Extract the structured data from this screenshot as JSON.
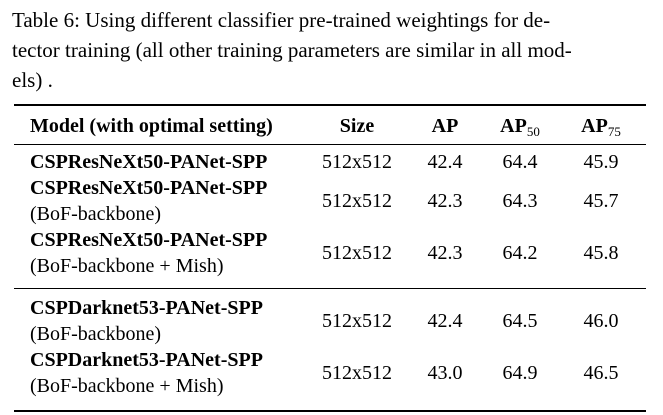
{
  "caption": {
    "lines": [
      "Table 6: Using different classifier pre-trained weightings for de-",
      "tector training (all other training parameters are similar in all mod-",
      "els) ."
    ]
  },
  "table": {
    "header": [
      {
        "text": "Model (with optimal setting)"
      },
      {
        "text": "Size"
      },
      {
        "text": "AP"
      },
      {
        "text": "AP",
        "sub": "50"
      },
      {
        "text": "AP",
        "sub": "75"
      }
    ],
    "groups": [
      [
        {
          "model": "CSPResNeXt50-PANet-SPP",
          "cells": [
            "512x512",
            "42.4",
            "64.4",
            "45.9"
          ]
        },
        {
          "model": "CSPResNeXt50-PANet-SPP",
          "note": "(BoF-backbone)",
          "cells": [
            "512x512",
            "42.3",
            "64.3",
            "45.7"
          ]
        },
        {
          "model": "CSPResNeXt50-PANet-SPP",
          "note": "(BoF-backbone + Mish)",
          "cells": [
            "512x512",
            "42.3",
            "64.2",
            "45.8"
          ]
        }
      ],
      [
        {
          "model": "CSPDarknet53-PANet-SPP",
          "note": "(BoF-backbone)",
          "cells": [
            "512x512",
            "42.4",
            "64.5",
            "46.0"
          ]
        },
        {
          "model": "CSPDarknet53-PANet-SPP",
          "note": "(BoF-backbone + Mish)",
          "cells": [
            "512x512",
            "43.0",
            "64.9",
            "46.5"
          ]
        }
      ]
    ]
  }
}
